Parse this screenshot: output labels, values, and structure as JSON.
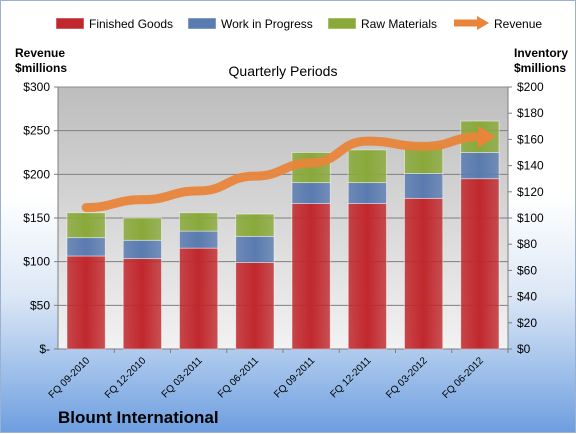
{
  "chart_data": {
    "type": "bar",
    "stacked": true,
    "title": "Quarterly Periods",
    "footer_title": "Blount International",
    "categories": [
      "FQ 09-2010",
      "FQ 12-2010",
      "FQ 03-2011",
      "FQ 06-2011",
      "FQ 09-2011",
      "FQ 12-2011",
      "FQ 03-2012",
      "FQ 06-2012"
    ],
    "series": [
      {
        "name": "Finished Goods",
        "axis": "right",
        "color": "#c0282d",
        "values": [
          71,
          69,
          77,
          66,
          111,
          111,
          115,
          130
        ]
      },
      {
        "name": "Work in Progress",
        "axis": "right",
        "color": "#5a7bb0",
        "values": [
          14,
          14,
          13,
          20,
          16,
          16,
          19,
          20
        ]
      },
      {
        "name": "Raw Materials",
        "axis": "right",
        "color": "#89a93a",
        "values": [
          19,
          17,
          14,
          17,
          23,
          25,
          23,
          24
        ]
      }
    ],
    "line_series": {
      "name": "Revenue",
      "axis": "left",
      "color": "#e8853a",
      "values": [
        162,
        171,
        181,
        198,
        213,
        238,
        232,
        243
      ]
    },
    "left_axis": {
      "label_line1": "Revenue",
      "label_line2": "$millions",
      "ylim": [
        0,
        300
      ],
      "ticks": [
        "$-",
        "$50",
        "$100",
        "$150",
        "$200",
        "$250",
        "$300"
      ]
    },
    "right_axis": {
      "label_line1": "Inventory",
      "label_line2": "$millions",
      "ylim": [
        0,
        200
      ],
      "ticks": [
        "$0",
        "$20",
        "$40",
        "$60",
        "$80",
        "$100",
        "$120",
        "$140",
        "$160",
        "$180",
        "$200"
      ]
    },
    "legend_position": "top",
    "grid": true
  }
}
